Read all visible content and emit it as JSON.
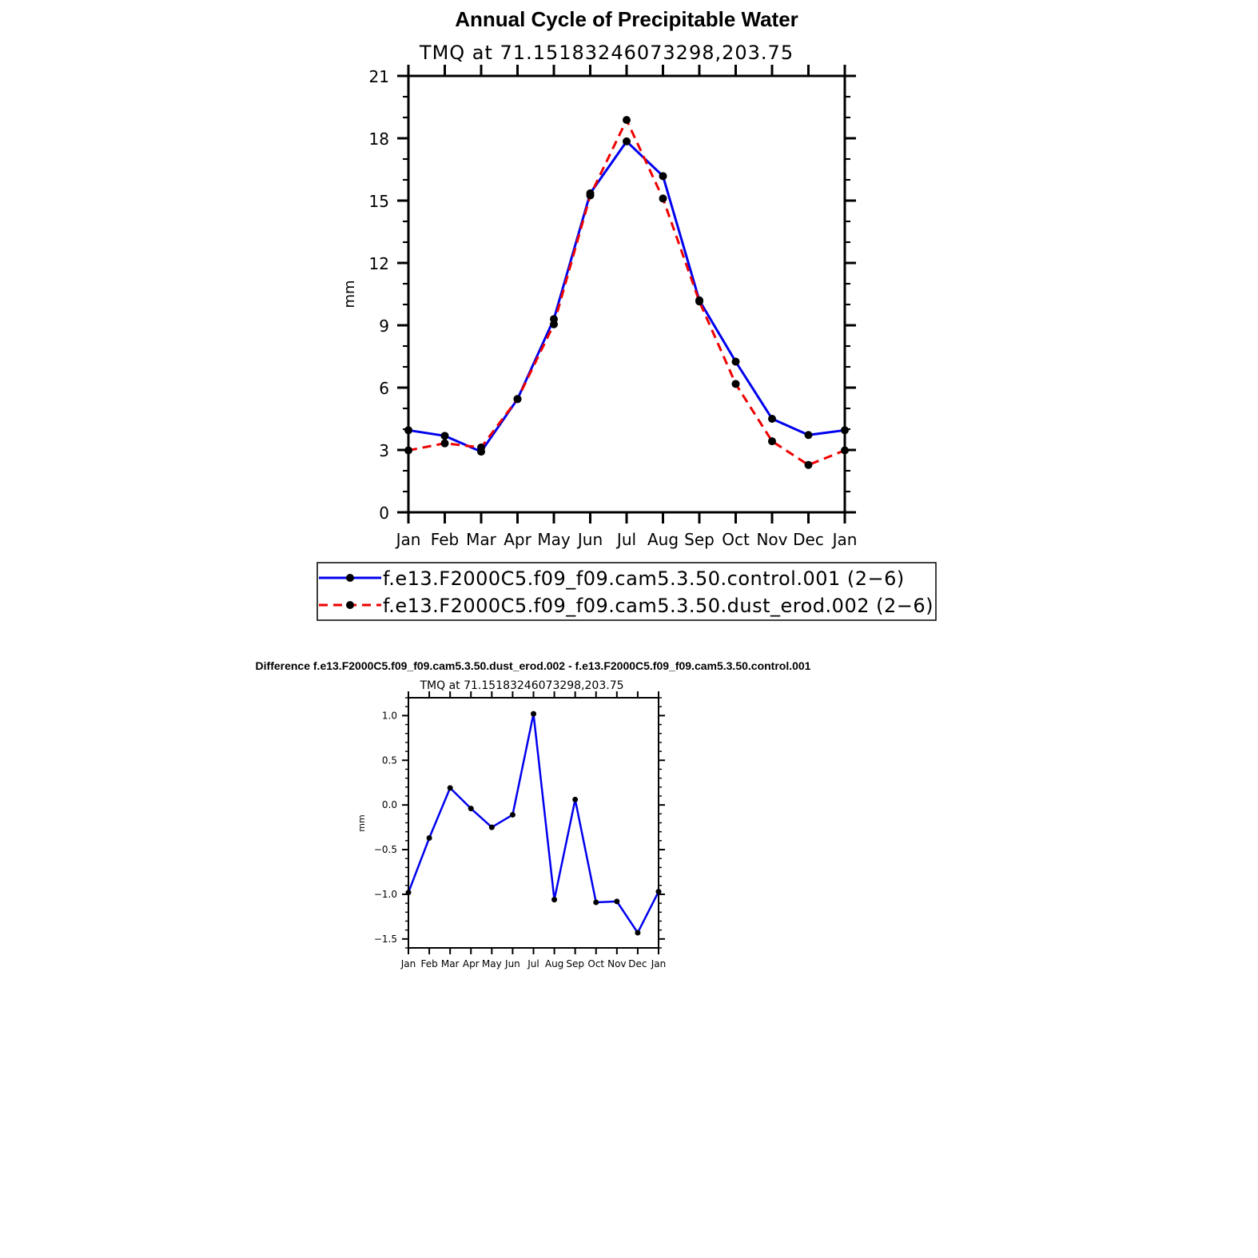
{
  "colors": {
    "control": "#0000ee",
    "dust": "#ee0000",
    "marker": "#000000"
  },
  "chart_data": [
    {
      "type": "line",
      "title": "Annual Cycle of Precipitable Water",
      "subtitle": "TMQ  at  71.15183246073298,203.75",
      "xlabel": "",
      "ylabel": "mm",
      "categories": [
        "Jan",
        "Feb",
        "Mar",
        "Apr",
        "May",
        "Jun",
        "Jul",
        "Aug",
        "Sep",
        "Oct",
        "Nov",
        "Dec",
        "Jan"
      ],
      "ylim": [
        0,
        21
      ],
      "yticks": [
        "0",
        "3",
        "6",
        "9",
        "12",
        "15",
        "18",
        "21"
      ],
      "yticks_values": [
        0,
        3,
        6,
        9,
        12,
        15,
        18,
        21
      ],
      "series": [
        {
          "name": "f.e13.F2000C5.f09_f09.cam5.3.50.control.001 (2−6)",
          "style": "solid",
          "color": "#0000ee",
          "values": [
            3.95,
            3.68,
            2.92,
            5.45,
            9.3,
            15.35,
            17.85,
            16.18,
            10.2,
            7.25,
            4.5,
            3.72,
            3.95
          ]
        },
        {
          "name": "f.e13.F2000C5.f09_f09.cam5.3.50.dust_erod.002 (2−6)",
          "style": "dashed",
          "color": "#ee0000",
          "values": [
            2.98,
            3.32,
            3.12,
            5.45,
            9.05,
            15.25,
            18.88,
            15.1,
            10.15,
            6.18,
            3.42,
            2.28,
            2.98
          ]
        }
      ],
      "legend_position": "bottom"
    },
    {
      "type": "line",
      "title": "Difference f.e13.F2000C5.f09_f09.cam5.3.50.dust_erod.002 - f.e13.F2000C5.f09_f09.cam5.3.50.control.001",
      "subtitle": "TMQ  at  71.15183246073298,203.75",
      "xlabel": "",
      "ylabel": "mm",
      "categories": [
        "Jan",
        "Feb",
        "Mar",
        "Apr",
        "May",
        "Jun",
        "Jul",
        "Aug",
        "Sep",
        "Oct",
        "Nov",
        "Dec",
        "Jan"
      ],
      "ylim": [
        -1.6,
        1.2
      ],
      "yticks": [
        "−1.5",
        "−1.0",
        "−0.5",
        "0.0",
        "0.5",
        "1.0"
      ],
      "yticks_values": [
        -1.5,
        -1.0,
        -0.5,
        0.0,
        0.5,
        1.0
      ],
      "series": [
        {
          "name": "difference",
          "style": "solid",
          "color": "#0000ee",
          "values": [
            -0.98,
            -0.37,
            0.19,
            -0.04,
            -0.25,
            -0.11,
            1.02,
            -1.06,
            0.06,
            -1.09,
            -1.08,
            -1.43,
            -0.97
          ]
        }
      ]
    }
  ]
}
